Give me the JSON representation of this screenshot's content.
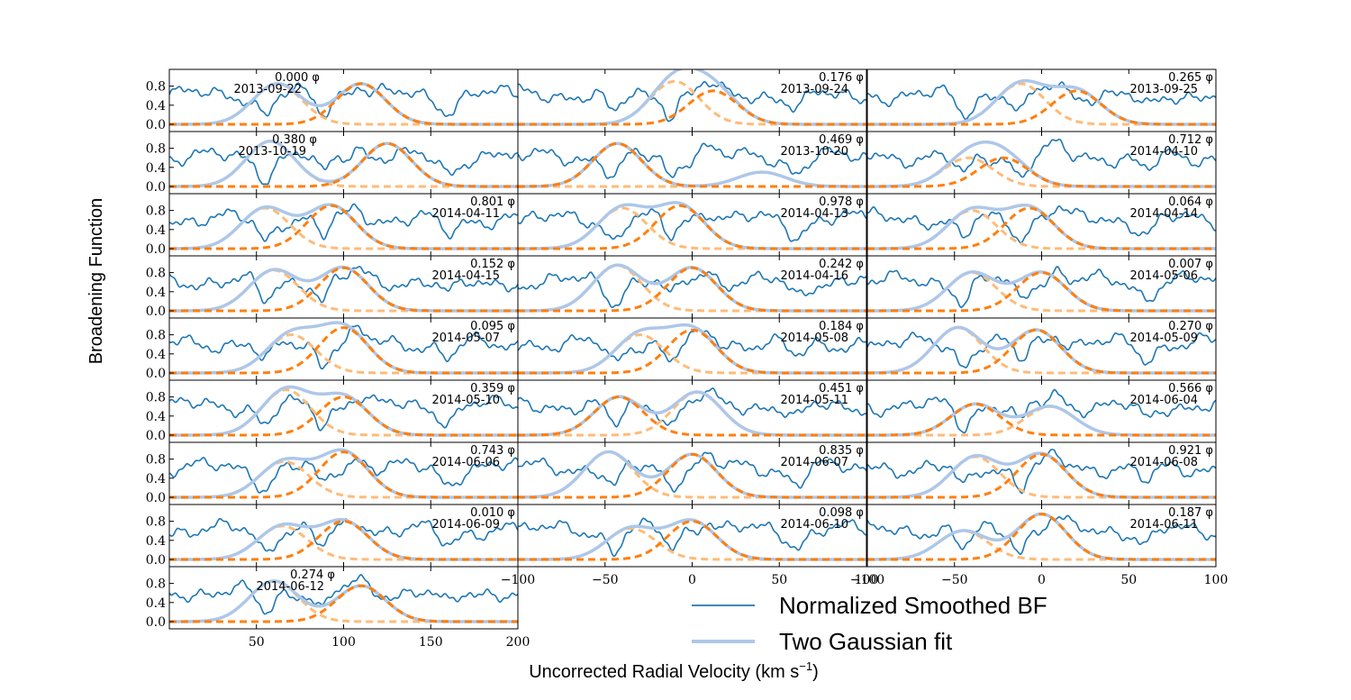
{
  "chart_data": {
    "type": "line",
    "title": "",
    "ylabel": "Broadening Function",
    "xlabel_main": "Uncorrected Radial Velocity (km s",
    "xlabel_sup": "−1",
    "xlabel_close": ")",
    "ylim": [
      0,
      1
    ],
    "yticks": [
      "0.0",
      "0.4",
      "0.8"
    ],
    "grid": false,
    "legend": {
      "placement": "lower-right",
      "entries": [
        {
          "label": "Normalized Smoothed BF",
          "color": "#1f77b4"
        },
        {
          "label": "Two Gaussian fit",
          "color": "#aec7e8"
        }
      ]
    },
    "colors": {
      "bf": "#1f77b4",
      "fit": "#aec7e8",
      "gauss1": "#ff7f0e",
      "gauss2": "#ffbb78"
    },
    "columns": [
      {
        "xlim": [
          0,
          200
        ],
        "xticks": [
          50,
          100,
          150,
          200
        ],
        "xtick_labels": [
          "50",
          "100",
          "150",
          "200"
        ]
      },
      {
        "xlim": [
          -100,
          100
        ],
        "xticks": [
          -100,
          -50,
          0,
          50,
          100
        ],
        "xtick_labels": [
          "−100",
          "−50",
          "0",
          "50",
          "100"
        ]
      },
      {
        "xlim": [
          -100,
          100
        ],
        "xticks": [
          -100,
          -50,
          0,
          50,
          100
        ],
        "xtick_labels": [
          "−100",
          "−50",
          "0",
          "50",
          "100"
        ]
      }
    ],
    "phase_suffix": "φ",
    "panels": [
      {
        "phase": "0.000",
        "date": "2013-09-22",
        "g1": {
          "mu": 110,
          "amp": 0.85,
          "sig": 14
        },
        "g2": {
          "mu": 62,
          "amp": 0.85,
          "sig": 14
        }
      },
      {
        "phase": "0.176",
        "date": "2013-09-24",
        "g1": {
          "mu": 112,
          "amp": 0.7,
          "sig": 14
        },
        "g2": {
          "mu": 90,
          "amp": 0.9,
          "sig": 14
        }
      },
      {
        "phase": "0.265",
        "date": "2013-09-25",
        "g1": {
          "mu": 120,
          "amp": 0.7,
          "sig": 14
        },
        "g2": {
          "mu": 88,
          "amp": 0.85,
          "sig": 14
        }
      },
      {
        "phase": "0.380",
        "date": "2013-10-19",
        "g1": {
          "mu": 125,
          "amp": 0.9,
          "sig": 14
        },
        "g2": {
          "mu": 58,
          "amp": 0.95,
          "sig": 14
        }
      },
      {
        "phase": "0.469",
        "date": "2013-10-20",
        "g1": {
          "mu": 57,
          "amp": 0.9,
          "sig": 14
        },
        "g2": {
          "mu": 140,
          "amp": 0.3,
          "sig": 14
        }
      },
      {
        "phase": "0.712",
        "date": "2014-04-10",
        "g1": {
          "mu": 78,
          "amp": 0.6,
          "sig": 14
        },
        "g2": {
          "mu": 58,
          "amp": 0.6,
          "sig": 14
        }
      },
      {
        "phase": "0.801",
        "date": "2014-04-11",
        "g1": {
          "mu": 93,
          "amp": 0.9,
          "sig": 14
        },
        "g2": {
          "mu": 55,
          "amp": 0.85,
          "sig": 14
        }
      },
      {
        "phase": "0.978",
        "date": "2014-04-13",
        "g1": {
          "mu": 93,
          "amp": 0.9,
          "sig": 14
        },
        "g2": {
          "mu": 60,
          "amp": 0.85,
          "sig": 14
        }
      },
      {
        "phase": "0.064",
        "date": "2014-04-14",
        "g1": {
          "mu": 93,
          "amp": 0.85,
          "sig": 14
        },
        "g2": {
          "mu": 60,
          "amp": 0.8,
          "sig": 14
        }
      },
      {
        "phase": "0.152",
        "date": "2014-04-15",
        "g1": {
          "mu": 100,
          "amp": 0.9,
          "sig": 14
        },
        "g2": {
          "mu": 60,
          "amp": 0.85,
          "sig": 14
        }
      },
      {
        "phase": "0.242",
        "date": "2014-04-16",
        "g1": {
          "mu": 100,
          "amp": 0.9,
          "sig": 14
        },
        "g2": {
          "mu": 57,
          "amp": 0.95,
          "sig": 14
        }
      },
      {
        "phase": "0.007",
        "date": "2014-05-06",
        "g1": {
          "mu": 100,
          "amp": 0.8,
          "sig": 14
        },
        "g2": {
          "mu": 60,
          "amp": 0.8,
          "sig": 14
        }
      },
      {
        "phase": "0.095",
        "date": "2014-05-07",
        "g1": {
          "mu": 100,
          "amp": 0.95,
          "sig": 14
        },
        "g2": {
          "mu": 70,
          "amp": 0.8,
          "sig": 14
        }
      },
      {
        "phase": "0.184",
        "date": "2014-05-08",
        "g1": {
          "mu": 100,
          "amp": 0.9,
          "sig": 14
        },
        "g2": {
          "mu": 70,
          "amp": 0.8,
          "sig": 14
        }
      },
      {
        "phase": "0.270",
        "date": "2014-05-09",
        "g1": {
          "mu": 97,
          "amp": 0.9,
          "sig": 14
        },
        "g2": {
          "mu": 52,
          "amp": 0.95,
          "sig": 14
        }
      },
      {
        "phase": "0.359",
        "date": "2014-05-10",
        "g1": {
          "mu": 100,
          "amp": 0.8,
          "sig": 14
        },
        "g2": {
          "mu": 67,
          "amp": 0.95,
          "sig": 14
        }
      },
      {
        "phase": "0.451",
        "date": "2014-05-11",
        "g1": {
          "mu": 58,
          "amp": 0.8,
          "sig": 14
        },
        "g2": {
          "mu": 103,
          "amp": 0.9,
          "sig": 14
        }
      },
      {
        "phase": "0.566",
        "date": "2014-06-04",
        "g1": {
          "mu": 62,
          "amp": 0.65,
          "sig": 14
        },
        "g2": {
          "mu": 105,
          "amp": 0.6,
          "sig": 14
        }
      },
      {
        "phase": "0.743",
        "date": "2014-06-06",
        "g1": {
          "mu": 100,
          "amp": 0.95,
          "sig": 14
        },
        "g2": {
          "mu": 66,
          "amp": 0.75,
          "sig": 14
        }
      },
      {
        "phase": "0.835",
        "date": "2014-06-07",
        "g1": {
          "mu": 100,
          "amp": 0.9,
          "sig": 14
        },
        "g2": {
          "mu": 52,
          "amp": 0.95,
          "sig": 14
        }
      },
      {
        "phase": "0.921",
        "date": "2014-06-08",
        "g1": {
          "mu": 100,
          "amp": 0.9,
          "sig": 14
        },
        "g2": {
          "mu": 62,
          "amp": 0.85,
          "sig": 14
        }
      },
      {
        "phase": "0.010",
        "date": "2014-06-09",
        "g1": {
          "mu": 100,
          "amp": 0.8,
          "sig": 14
        },
        "g2": {
          "mu": 65,
          "amp": 0.7,
          "sig": 14
        }
      },
      {
        "phase": "0.098",
        "date": "2014-06-10",
        "g1": {
          "mu": 100,
          "amp": 0.8,
          "sig": 14
        },
        "g2": {
          "mu": 65,
          "amp": 0.65,
          "sig": 14
        }
      },
      {
        "phase": "0.187",
        "date": "2014-06-11",
        "g1": {
          "mu": 100,
          "amp": 0.95,
          "sig": 14
        },
        "g2": {
          "mu": 55,
          "amp": 0.6,
          "sig": 14
        }
      },
      {
        "phase": "0.274",
        "date": "2014-06-12",
        "g1": {
          "mu": 110,
          "amp": 0.75,
          "sig": 14
        },
        "g2": {
          "mu": 60,
          "amp": 0.85,
          "sig": 14
        }
      }
    ]
  }
}
